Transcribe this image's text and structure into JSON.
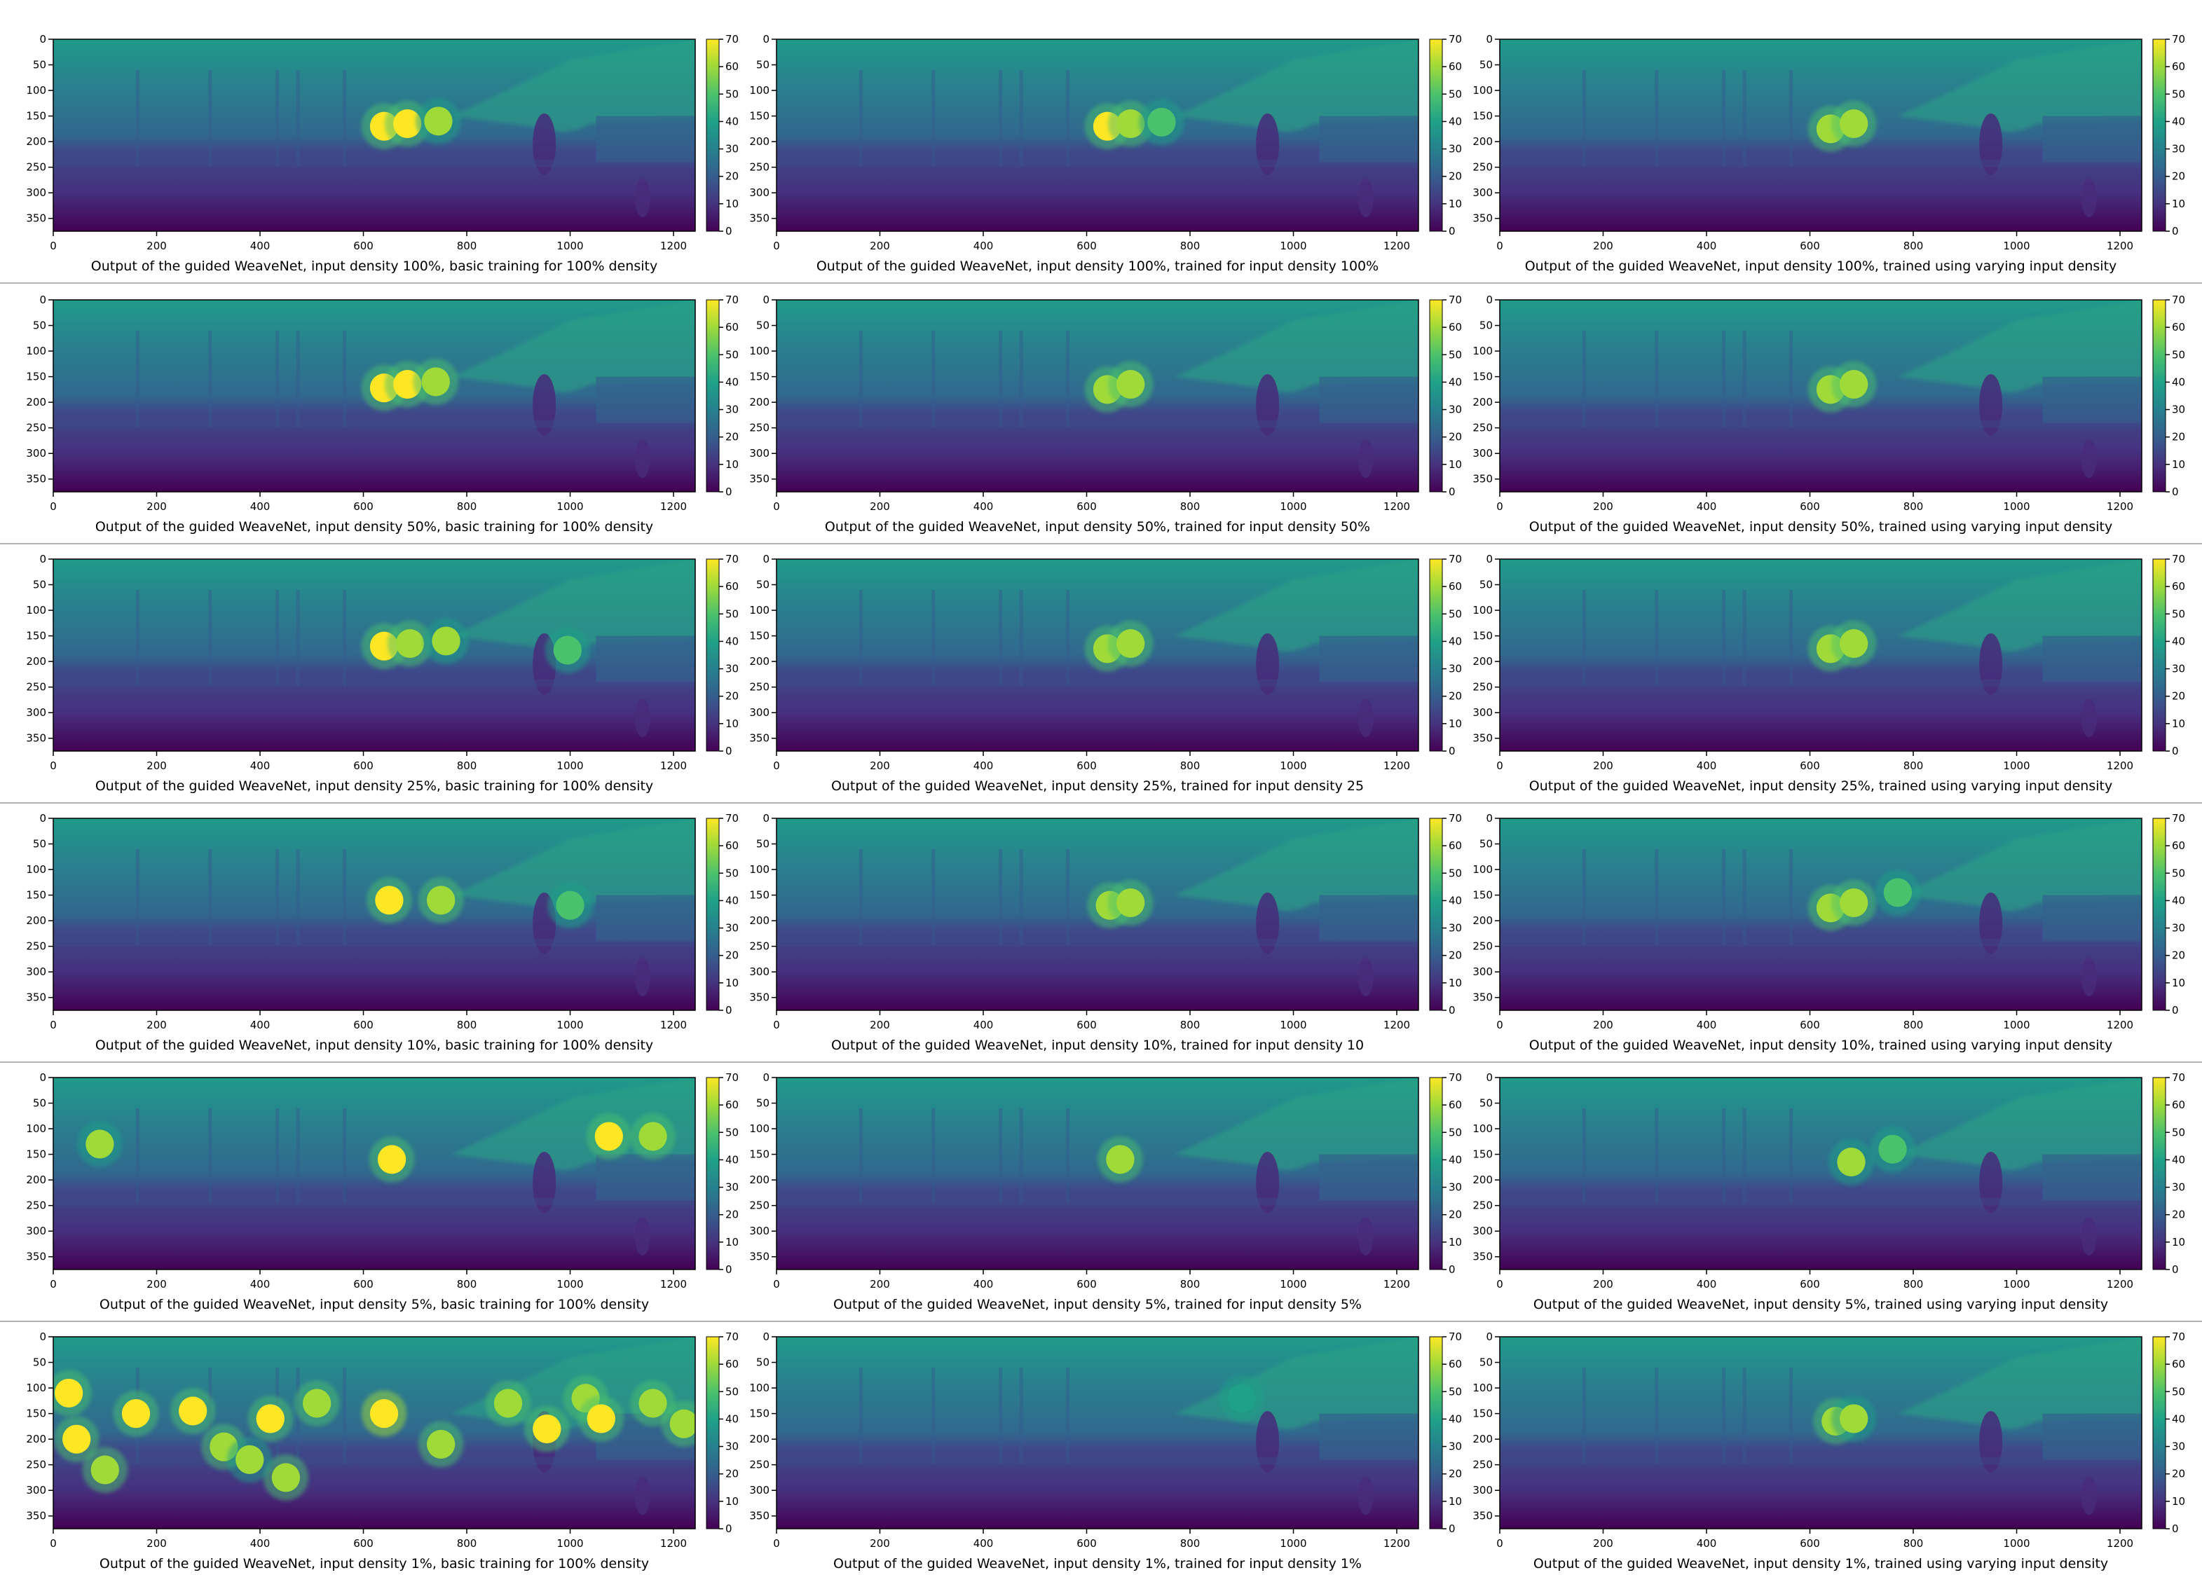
{
  "figure": {
    "colorscale": [
      "#440154",
      "#46327e",
      "#365c8d",
      "#277f8e",
      "#1fa187",
      "#4ac16d",
      "#a0da39",
      "#fde725"
    ],
    "background_color": "#ffffff",
    "separator_color": "#999999"
  },
  "chart_data": [
    {
      "type": "heatmap",
      "xlabel": "Output of the guided WeaveNet, input density 100%, basic training for 100% density",
      "xticks": [
        0,
        200,
        400,
        600,
        800,
        1000,
        1200
      ],
      "yticks": [
        0,
        50,
        100,
        150,
        200,
        250,
        300,
        350
      ],
      "xlim": [
        0,
        1242
      ],
      "ylim": [
        375,
        0
      ],
      "colorbar": {
        "ticks": [
          0,
          10,
          20,
          30,
          40,
          50,
          60,
          70
        ],
        "range": [
          0,
          70
        ]
      },
      "blobs": [
        {
          "x": 640,
          "y": 170,
          "value": 68
        },
        {
          "x": 685,
          "y": 165,
          "value": 66
        },
        {
          "x": 745,
          "y": 160,
          "value": 55
        }
      ]
    },
    {
      "type": "heatmap",
      "xlabel": "Output of the guided WeaveNet, input density 100%, trained for input density 100%",
      "xticks": [
        0,
        200,
        400,
        600,
        800,
        1000,
        1200
      ],
      "yticks": [
        0,
        50,
        100,
        150,
        200,
        250,
        300,
        350
      ],
      "xlim": [
        0,
        1242
      ],
      "ylim": [
        375,
        0
      ],
      "colorbar": {
        "ticks": [
          0,
          10,
          20,
          30,
          40,
          50,
          60,
          70
        ],
        "range": [
          0,
          70
        ]
      },
      "blobs": [
        {
          "x": 640,
          "y": 170,
          "value": 66
        },
        {
          "x": 685,
          "y": 165,
          "value": 64
        },
        {
          "x": 745,
          "y": 162,
          "value": 50
        }
      ]
    },
    {
      "type": "heatmap",
      "xlabel": "Output of the guided WeaveNet, input density 100%, trained using varying input density",
      "xticks": [
        0,
        200,
        400,
        600,
        800,
        1000,
        1200
      ],
      "yticks": [
        0,
        50,
        100,
        150,
        200,
        250,
        300,
        350
      ],
      "xlim": [
        0,
        1242
      ],
      "ylim": [
        375,
        0
      ],
      "colorbar": {
        "ticks": [
          0,
          10,
          20,
          30,
          40,
          50,
          60,
          70
        ],
        "range": [
          0,
          70
        ]
      },
      "blobs": [
        {
          "x": 640,
          "y": 175,
          "value": 62
        },
        {
          "x": 685,
          "y": 165,
          "value": 64
        }
      ]
    },
    {
      "type": "heatmap",
      "xlabel": "Output of the guided WeaveNet, input density 50%, basic training for 100% density",
      "xticks": [
        0,
        200,
        400,
        600,
        800,
        1000,
        1200
      ],
      "yticks": [
        0,
        50,
        100,
        150,
        200,
        250,
        300,
        350
      ],
      "xlim": [
        0,
        1242
      ],
      "ylim": [
        375,
        0
      ],
      "colorbar": {
        "ticks": [
          0,
          10,
          20,
          30,
          40,
          50,
          60,
          70
        ],
        "range": [
          0,
          70
        ]
      },
      "blobs": [
        {
          "x": 640,
          "y": 172,
          "value": 68
        },
        {
          "x": 685,
          "y": 165,
          "value": 66
        },
        {
          "x": 740,
          "y": 160,
          "value": 58
        }
      ]
    },
    {
      "type": "heatmap",
      "xlabel": "Output of the guided WeaveNet, input density 50%, trained for input density 50%",
      "xticks": [
        0,
        200,
        400,
        600,
        800,
        1000,
        1200
      ],
      "yticks": [
        0,
        50,
        100,
        150,
        200,
        250,
        300,
        350
      ],
      "xlim": [
        0,
        1242
      ],
      "ylim": [
        375,
        0
      ],
      "colorbar": {
        "ticks": [
          0,
          10,
          20,
          30,
          40,
          50,
          60,
          70
        ],
        "range": [
          0,
          70
        ]
      },
      "blobs": [
        {
          "x": 640,
          "y": 175,
          "value": 64
        },
        {
          "x": 685,
          "y": 165,
          "value": 64
        }
      ]
    },
    {
      "type": "heatmap",
      "xlabel": "Output of the guided WeaveNet, input density 50%, trained using varying input density",
      "xticks": [
        0,
        200,
        400,
        600,
        800,
        1000,
        1200
      ],
      "yticks": [
        0,
        50,
        100,
        150,
        200,
        250,
        300,
        350
      ],
      "xlim": [
        0,
        1242
      ],
      "ylim": [
        375,
        0
      ],
      "colorbar": {
        "ticks": [
          0,
          10,
          20,
          30,
          40,
          50,
          60,
          70
        ],
        "range": [
          0,
          70
        ]
      },
      "blobs": [
        {
          "x": 640,
          "y": 175,
          "value": 60
        },
        {
          "x": 685,
          "y": 165,
          "value": 64
        }
      ]
    },
    {
      "type": "heatmap",
      "xlabel": "Output of the guided WeaveNet, input density 25%, basic training for 100% density",
      "xticks": [
        0,
        200,
        400,
        600,
        800,
        1000,
        1200
      ],
      "yticks": [
        0,
        50,
        100,
        150,
        200,
        250,
        300,
        350
      ],
      "xlim": [
        0,
        1242
      ],
      "ylim": [
        375,
        0
      ],
      "colorbar": {
        "ticks": [
          0,
          10,
          20,
          30,
          40,
          50,
          60,
          70
        ],
        "range": [
          0,
          70
        ]
      },
      "blobs": [
        {
          "x": 640,
          "y": 170,
          "value": 66
        },
        {
          "x": 690,
          "y": 165,
          "value": 64
        },
        {
          "x": 760,
          "y": 160,
          "value": 55
        },
        {
          "x": 995,
          "y": 178,
          "value": 50
        }
      ]
    },
    {
      "type": "heatmap",
      "xlabel": "Output of the guided WeaveNet, input density 25%, trained for input density 25",
      "xticks": [
        0,
        200,
        400,
        600,
        800,
        1000,
        1200
      ],
      "yticks": [
        0,
        50,
        100,
        150,
        200,
        250,
        300,
        350
      ],
      "xlim": [
        0,
        1242
      ],
      "ylim": [
        375,
        0
      ],
      "colorbar": {
        "ticks": [
          0,
          10,
          20,
          30,
          40,
          50,
          60,
          70
        ],
        "range": [
          0,
          70
        ]
      },
      "blobs": [
        {
          "x": 640,
          "y": 175,
          "value": 62
        },
        {
          "x": 685,
          "y": 165,
          "value": 64
        }
      ]
    },
    {
      "type": "heatmap",
      "xlabel": "Output of the guided WeaveNet, input density 25%, trained using varying input density",
      "xticks": [
        0,
        200,
        400,
        600,
        800,
        1000,
        1200
      ],
      "yticks": [
        0,
        50,
        100,
        150,
        200,
        250,
        300,
        350
      ],
      "xlim": [
        0,
        1242
      ],
      "ylim": [
        375,
        0
      ],
      "colorbar": {
        "ticks": [
          0,
          10,
          20,
          30,
          40,
          50,
          60,
          70
        ],
        "range": [
          0,
          70
        ]
      },
      "blobs": [
        {
          "x": 640,
          "y": 175,
          "value": 60
        },
        {
          "x": 685,
          "y": 165,
          "value": 62
        }
      ]
    },
    {
      "type": "heatmap",
      "xlabel": "Output of the guided WeaveNet, input density 10%, basic training for 100% density",
      "xticks": [
        0,
        200,
        400,
        600,
        800,
        1000,
        1200
      ],
      "yticks": [
        0,
        50,
        100,
        150,
        200,
        250,
        300,
        350
      ],
      "xlim": [
        0,
        1242
      ],
      "ylim": [
        375,
        0
      ],
      "colorbar": {
        "ticks": [
          0,
          10,
          20,
          30,
          40,
          50,
          60,
          70
        ],
        "range": [
          0,
          70
        ]
      },
      "blobs": [
        {
          "x": 650,
          "y": 160,
          "value": 66
        },
        {
          "x": 750,
          "y": 160,
          "value": 58
        },
        {
          "x": 1000,
          "y": 170,
          "value": 50
        }
      ]
    },
    {
      "type": "heatmap",
      "xlabel": "Output of the guided WeaveNet, input density 10%, trained for input density 10",
      "xticks": [
        0,
        200,
        400,
        600,
        800,
        1000,
        1200
      ],
      "yticks": [
        0,
        50,
        100,
        150,
        200,
        250,
        300,
        350
      ],
      "xlim": [
        0,
        1242
      ],
      "ylim": [
        375,
        0
      ],
      "colorbar": {
        "ticks": [
          0,
          10,
          20,
          30,
          40,
          50,
          60,
          70
        ],
        "range": [
          0,
          70
        ]
      },
      "blobs": [
        {
          "x": 645,
          "y": 170,
          "value": 60
        },
        {
          "x": 685,
          "y": 165,
          "value": 62
        }
      ]
    },
    {
      "type": "heatmap",
      "xlabel": "Output of the guided WeaveNet, input density 10%, trained using varying input density",
      "xticks": [
        0,
        200,
        400,
        600,
        800,
        1000,
        1200
      ],
      "yticks": [
        0,
        50,
        100,
        150,
        200,
        250,
        300,
        350
      ],
      "xlim": [
        0,
        1242
      ],
      "ylim": [
        375,
        0
      ],
      "colorbar": {
        "ticks": [
          0,
          10,
          20,
          30,
          40,
          50,
          60,
          70
        ],
        "range": [
          0,
          70
        ]
      },
      "blobs": [
        {
          "x": 640,
          "y": 175,
          "value": 60
        },
        {
          "x": 685,
          "y": 165,
          "value": 62
        },
        {
          "x": 770,
          "y": 145,
          "value": 48
        }
      ]
    },
    {
      "type": "heatmap",
      "xlabel": "Output of the guided WeaveNet, input density 5%, basic training for 100% density",
      "xticks": [
        0,
        200,
        400,
        600,
        800,
        1000,
        1200
      ],
      "yticks": [
        0,
        50,
        100,
        150,
        200,
        250,
        300,
        350
      ],
      "xlim": [
        0,
        1242
      ],
      "ylim": [
        375,
        0
      ],
      "colorbar": {
        "ticks": [
          0,
          10,
          20,
          30,
          40,
          50,
          60,
          70
        ],
        "range": [
          0,
          70
        ]
      },
      "blobs": [
        {
          "x": 90,
          "y": 130,
          "value": 55
        },
        {
          "x": 655,
          "y": 160,
          "value": 66
        },
        {
          "x": 1075,
          "y": 115,
          "value": 66
        },
        {
          "x": 1160,
          "y": 115,
          "value": 64
        }
      ]
    },
    {
      "type": "heatmap",
      "xlabel": "Output of the guided WeaveNet, input density 5%, trained for input density 5%",
      "xticks": [
        0,
        200,
        400,
        600,
        800,
        1000,
        1200
      ],
      "yticks": [
        0,
        50,
        100,
        150,
        200,
        250,
        300,
        350
      ],
      "xlim": [
        0,
        1242
      ],
      "ylim": [
        375,
        0
      ],
      "colorbar": {
        "ticks": [
          0,
          10,
          20,
          30,
          40,
          50,
          60,
          70
        ],
        "range": [
          0,
          70
        ]
      },
      "blobs": [
        {
          "x": 665,
          "y": 160,
          "value": 60
        }
      ]
    },
    {
      "type": "heatmap",
      "xlabel": "Output of the guided WeaveNet, input density 5%, trained using varying input density",
      "xticks": [
        0,
        200,
        400,
        600,
        800,
        1000,
        1200
      ],
      "yticks": [
        0,
        50,
        100,
        150,
        200,
        250,
        300,
        350
      ],
      "xlim": [
        0,
        1242
      ],
      "ylim": [
        375,
        0
      ],
      "colorbar": {
        "ticks": [
          0,
          10,
          20,
          30,
          40,
          50,
          60,
          70
        ],
        "range": [
          0,
          70
        ]
      },
      "blobs": [
        {
          "x": 680,
          "y": 165,
          "value": 56
        },
        {
          "x": 760,
          "y": 140,
          "value": 48
        }
      ]
    },
    {
      "type": "heatmap",
      "xlabel": "Output of the guided WeaveNet, input density 1%, basic training for 100% density",
      "xticks": [
        0,
        200,
        400,
        600,
        800,
        1000,
        1200
      ],
      "yticks": [
        0,
        50,
        100,
        150,
        200,
        250,
        300,
        350
      ],
      "xlim": [
        0,
        1242
      ],
      "ylim": [
        375,
        0
      ],
      "colorbar": {
        "ticks": [
          0,
          10,
          20,
          30,
          40,
          50,
          60,
          70
        ],
        "range": [
          0,
          70
        ]
      },
      "blobs": [
        {
          "x": 30,
          "y": 110,
          "value": 66
        },
        {
          "x": 45,
          "y": 200,
          "value": 66
        },
        {
          "x": 100,
          "y": 260,
          "value": 62
        },
        {
          "x": 160,
          "y": 150,
          "value": 68
        },
        {
          "x": 270,
          "y": 145,
          "value": 66
        },
        {
          "x": 330,
          "y": 215,
          "value": 60
        },
        {
          "x": 420,
          "y": 160,
          "value": 68
        },
        {
          "x": 510,
          "y": 130,
          "value": 64
        },
        {
          "x": 640,
          "y": 150,
          "value": 70
        },
        {
          "x": 750,
          "y": 210,
          "value": 62
        },
        {
          "x": 880,
          "y": 130,
          "value": 64
        },
        {
          "x": 955,
          "y": 180,
          "value": 66
        },
        {
          "x": 1030,
          "y": 120,
          "value": 64
        },
        {
          "x": 1060,
          "y": 160,
          "value": 68
        },
        {
          "x": 1160,
          "y": 130,
          "value": 62
        },
        {
          "x": 1220,
          "y": 170,
          "value": 60
        },
        {
          "x": 450,
          "y": 275,
          "value": 60
        },
        {
          "x": 380,
          "y": 240,
          "value": 56
        }
      ]
    },
    {
      "type": "heatmap",
      "xlabel": "Output of the guided WeaveNet, input density 1%, trained for input density 1%",
      "xticks": [
        0,
        200,
        400,
        600,
        800,
        1000,
        1200
      ],
      "yticks": [
        0,
        50,
        100,
        150,
        200,
        250,
        300,
        350
      ],
      "xlim": [
        0,
        1242
      ],
      "ylim": [
        375,
        0
      ],
      "colorbar": {
        "ticks": [
          0,
          10,
          20,
          30,
          40,
          50,
          60,
          70
        ],
        "range": [
          0,
          70
        ]
      },
      "blobs": [
        {
          "x": 900,
          "y": 120,
          "value": 44
        }
      ]
    },
    {
      "type": "heatmap",
      "xlabel": "Output of the guided WeaveNet, input density 1%, trained using varying input density",
      "xticks": [
        0,
        200,
        400,
        600,
        800,
        1000,
        1200
      ],
      "yticks": [
        0,
        50,
        100,
        150,
        200,
        250,
        300,
        350
      ],
      "xlim": [
        0,
        1242
      ],
      "ylim": [
        375,
        0
      ],
      "colorbar": {
        "ticks": [
          0,
          10,
          20,
          30,
          40,
          50,
          60,
          70
        ],
        "range": [
          0,
          70
        ]
      },
      "blobs": [
        {
          "x": 650,
          "y": 165,
          "value": 58
        },
        {
          "x": 685,
          "y": 160,
          "value": 56
        }
      ]
    }
  ]
}
